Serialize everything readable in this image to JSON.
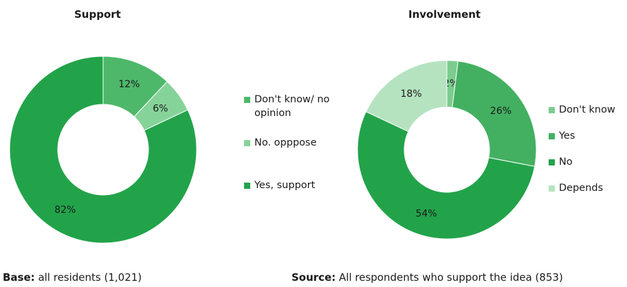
{
  "chart_data": [
    {
      "type": "pie",
      "title": "Support",
      "donut": true,
      "categories": [
        "Don't know/ no opinion",
        "No. opppose",
        "Yes, support"
      ],
      "values": [
        12,
        6,
        82
      ],
      "labels": [
        "12%",
        "6%",
        "82%"
      ],
      "colors": [
        "#4db86a",
        "#86d399",
        "#22a34a"
      ],
      "legend_position": "right",
      "footnote_label": "Base:",
      "footnote_text": "all residents (1,021)"
    },
    {
      "type": "pie",
      "title": "Involvement",
      "donut": true,
      "categories": [
        "Don't know",
        "Yes",
        "No",
        "Depends"
      ],
      "values": [
        2,
        26,
        54,
        18
      ],
      "labels": [
        "2%",
        "26%",
        "54%",
        "18%"
      ],
      "colors": [
        "#7ccc8e",
        "#43b061",
        "#22a34a",
        "#b5e3c0"
      ],
      "legend_position": "right",
      "footnote_label": "Source:",
      "footnote_text": "All respondents who support the idea (853)"
    }
  ]
}
